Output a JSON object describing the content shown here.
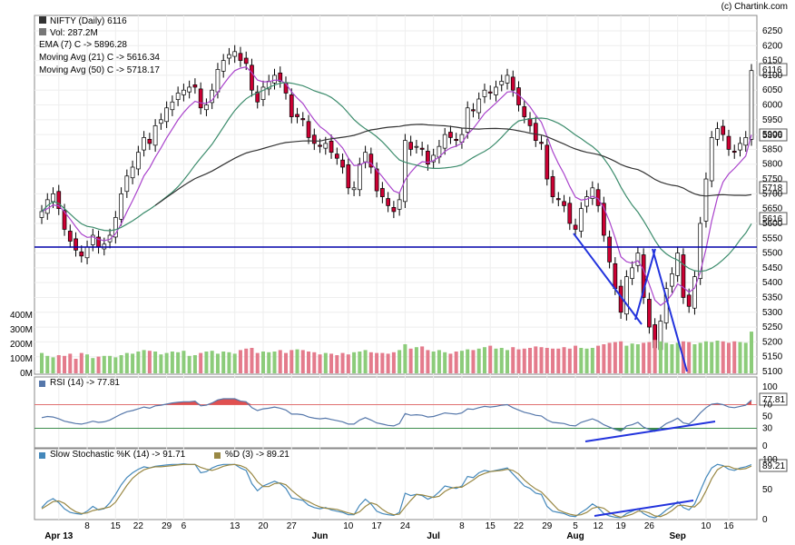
{
  "credit": "(c) Chartink.com",
  "legend": {
    "title": "NIFTY (Daily) 6116",
    "vol": "Vol: 287.2M",
    "ema": "EMA (7) C -> 5896.28",
    "ma21": "Moving Avg (21) C -> 5616.34",
    "ma50": "Moving Avg (50) C -> 5718.17",
    "rsi": "RSI (14) -> 77.81",
    "stoch_k": "Slow Stochastic %K (14) -> 91.71",
    "stoch_d": "%D (3) -> 89.21"
  },
  "colors": {
    "up": "#ffffff",
    "down": "#cc0033",
    "vol_up": "#8ccc7a",
    "vol_down": "#e47b8c",
    "ema": "#aa44cc",
    "ma21": "#3c8c6c",
    "ma50": "#333333",
    "support": "#0000aa",
    "trend": "#2233dd",
    "rsi_line": "#5577aa",
    "rsi_fill_high": "#e05050",
    "rsi_fill_low": "#3c8c4c",
    "stoch_k": "#4488bb",
    "stoch_d": "#998844"
  },
  "chart_data": {
    "type": "candlestick",
    "price_axis": {
      "min": 5100,
      "max": 6250,
      "ticks": [
        5100,
        5150,
        5200,
        5250,
        5300,
        5350,
        5400,
        5450,
        5500,
        5550,
        5600,
        5650,
        5700,
        5750,
        5800,
        5850,
        5900,
        5950,
        6000,
        6050,
        6100,
        6150,
        6200,
        6250
      ]
    },
    "volume_axis": {
      "ticks": [
        "0M",
        "100M",
        "200M",
        "300M",
        "400M"
      ],
      "max": 400
    },
    "rsi_axis": {
      "ticks": [
        0,
        30,
        50,
        70,
        100
      ],
      "levels": [
        30,
        70
      ]
    },
    "stoch_axis": {
      "ticks": [
        0,
        50,
        100
      ]
    },
    "value_tags": {
      "close": "6116",
      "ema": "5896",
      "ma50": "5718",
      "ma21": "5616",
      "rsi": "77.81",
      "stoch": "89.21"
    },
    "x_tick_labels": [
      {
        "i": 3,
        "t": "Apr 13"
      },
      {
        "i": 8,
        "t": "8"
      },
      {
        "i": 13,
        "t": "15"
      },
      {
        "i": 17,
        "t": "22"
      },
      {
        "i": 22,
        "t": "29"
      },
      {
        "i": 25,
        "t": "6"
      },
      {
        "i": 34,
        "t": "13"
      },
      {
        "i": 39,
        "t": "20"
      },
      {
        "i": 44,
        "t": "27"
      },
      {
        "i": 49,
        "t": "Jun"
      },
      {
        "i": 54,
        "t": "10"
      },
      {
        "i": 59,
        "t": "17"
      },
      {
        "i": 64,
        "t": "24"
      },
      {
        "i": 69,
        "t": "Jul"
      },
      {
        "i": 74,
        "t": "8"
      },
      {
        "i": 79,
        "t": "15"
      },
      {
        "i": 84,
        "t": "22"
      },
      {
        "i": 89,
        "t": "29"
      },
      {
        "i": 94,
        "t": "5"
      },
      {
        "i": 98,
        "t": "12"
      },
      {
        "i": 102,
        "t": "19"
      },
      {
        "i": 107,
        "t": "26"
      },
      {
        "i": 94,
        "t": "Aug"
      },
      {
        "i": 117,
        "t": "10"
      },
      {
        "i": 121,
        "t": "16"
      },
      {
        "i": 112,
        "t": "Sep"
      }
    ],
    "close": [
      5640,
      5680,
      5700,
      5650,
      5580,
      5540,
      5510,
      5490,
      5520,
      5560,
      5520,
      5530,
      5560,
      5620,
      5700,
      5760,
      5790,
      5840,
      5890,
      5870,
      5930,
      5950,
      5990,
      6010,
      6040,
      6050,
      6060,
      6060,
      5990,
      6000,
      6050,
      6120,
      6150,
      6170,
      6180,
      6150,
      6140,
      6050,
      6010,
      6060,
      6080,
      6100,
      6080,
      6040,
      5960,
      5960,
      5950,
      5890,
      5870,
      5860,
      5870,
      5840,
      5820,
      5790,
      5720,
      5720,
      5800,
      5840,
      5790,
      5710,
      5690,
      5660,
      5640,
      5680,
      5880,
      5850,
      5860,
      5850,
      5800,
      5830,
      5860,
      5900,
      5890,
      5880,
      5900,
      5990,
      5980,
      6020,
      6050,
      6040,
      6060,
      6080,
      6100,
      6050,
      6000,
      5960,
      5930,
      5880,
      5870,
      5750,
      5690,
      5680,
      5660,
      5600,
      5580,
      5650,
      5690,
      5720,
      5660,
      5560,
      5470,
      5380,
      5300,
      5420,
      5450,
      5500,
      5350,
      5250,
      5180,
      5270,
      5380,
      5430,
      5500,
      5350,
      5320,
      5420,
      5600,
      5750,
      5890,
      5920,
      5900,
      5850,
      5840,
      5870,
      5890,
      6116
    ],
    "volume": [
      140,
      120,
      110,
      125,
      120,
      135,
      100,
      140,
      130,
      105,
      115,
      120,
      120,
      110,
      125,
      140,
      135,
      150,
      160,
      155,
      150,
      130,
      140,
      150,
      145,
      155,
      120,
      125,
      140,
      150,
      155,
      135,
      150,
      145,
      135,
      160,
      170,
      175,
      140,
      150,
      145,
      150,
      160,
      140,
      160,
      165,
      160,
      150,
      145,
      130,
      140,
      135,
      125,
      140,
      130,
      145,
      150,
      160,
      145,
      140,
      140,
      135,
      145,
      160,
      200,
      170,
      180,
      185,
      160,
      150,
      160,
      145,
      135,
      150,
      155,
      165,
      160,
      170,
      180,
      190,
      170,
      175,
      160,
      180,
      165,
      170,
      175,
      185,
      180,
      175,
      170,
      170,
      180,
      170,
      190,
      175,
      170,
      175,
      190,
      200,
      210,
      215,
      220,
      190,
      205,
      200,
      210,
      215,
      230,
      220,
      210,
      200,
      210,
      220,
      215,
      200,
      210,
      220,
      215,
      225,
      220,
      210,
      220,
      215,
      210,
      287
    ],
    "rsi": [
      48,
      50,
      49,
      46,
      42,
      40,
      38,
      37,
      39,
      42,
      40,
      41,
      44,
      49,
      54,
      58,
      60,
      63,
      66,
      64,
      68,
      69,
      71,
      73,
      74,
      75,
      75,
      76,
      68,
      69,
      73,
      78,
      80,
      80,
      80,
      76,
      75,
      65,
      60,
      63,
      64,
      66,
      64,
      61,
      54,
      54,
      53,
      49,
      47,
      46,
      47,
      45,
      43,
      41,
      37,
      37,
      44,
      48,
      44,
      39,
      37,
      35,
      34,
      38,
      55,
      52,
      53,
      52,
      49,
      50,
      53,
      56,
      55,
      54,
      56,
      63,
      62,
      65,
      67,
      66,
      67,
      69,
      70,
      65,
      61,
      57,
      55,
      52,
      51,
      44,
      40,
      39,
      38,
      35,
      34,
      40,
      43,
      46,
      42,
      36,
      32,
      28,
      25,
      34,
      36,
      40,
      32,
      28,
      25,
      31,
      38,
      42,
      47,
      39,
      37,
      45,
      56,
      65,
      71,
      72,
      70,
      66,
      65,
      67,
      69,
      77.81
    ],
    "stoch_k": [
      20,
      30,
      35,
      28,
      18,
      12,
      10,
      9,
      14,
      22,
      16,
      18,
      28,
      42,
      58,
      70,
      78,
      84,
      88,
      86,
      89,
      90,
      91,
      92,
      92,
      93,
      92,
      92,
      78,
      80,
      86,
      90,
      92,
      92,
      92,
      86,
      82,
      60,
      48,
      56,
      60,
      64,
      60,
      52,
      36,
      34,
      32,
      24,
      20,
      18,
      20,
      16,
      14,
      12,
      8,
      8,
      24,
      34,
      26,
      14,
      10,
      8,
      7,
      12,
      44,
      40,
      42,
      40,
      34,
      38,
      46,
      56,
      54,
      52,
      56,
      72,
      70,
      78,
      82,
      80,
      82,
      84,
      86,
      76,
      66,
      56,
      52,
      44,
      42,
      22,
      14,
      12,
      10,
      6,
      5,
      12,
      18,
      26,
      20,
      10,
      6,
      4,
      3,
      10,
      14,
      18,
      10,
      5,
      3,
      8,
      16,
      22,
      30,
      20,
      16,
      26,
      48,
      70,
      86,
      92,
      90,
      84,
      82,
      86,
      88,
      91.71
    ],
    "stoch_d": [
      18,
      24,
      30,
      31,
      27,
      19,
      13,
      10,
      11,
      15,
      17,
      19,
      21,
      29,
      43,
      57,
      69,
      77,
      83,
      86,
      88,
      88,
      89,
      90,
      91,
      92,
      92,
      92,
      87,
      84,
      82,
      85,
      89,
      91,
      92,
      90,
      86,
      76,
      63,
      55,
      55,
      60,
      61,
      58,
      49,
      41,
      34,
      30,
      25,
      21,
      19,
      18,
      17,
      14,
      11,
      9,
      13,
      22,
      28,
      25,
      17,
      11,
      8,
      9,
      21,
      32,
      42,
      41,
      39,
      37,
      39,
      47,
      52,
      54,
      54,
      60,
      66,
      73,
      77,
      80,
      81,
      82,
      84,
      82,
      76,
      66,
      58,
      51,
      46,
      36,
      26,
      16,
      12,
      9,
      7,
      8,
      12,
      19,
      21,
      19,
      12,
      7,
      4,
      6,
      9,
      14,
      14,
      11,
      6,
      5,
      9,
      15,
      23,
      24,
      22,
      21,
      30,
      48,
      68,
      83,
      89,
      89,
      85,
      84,
      85,
      89.21
    ]
  }
}
